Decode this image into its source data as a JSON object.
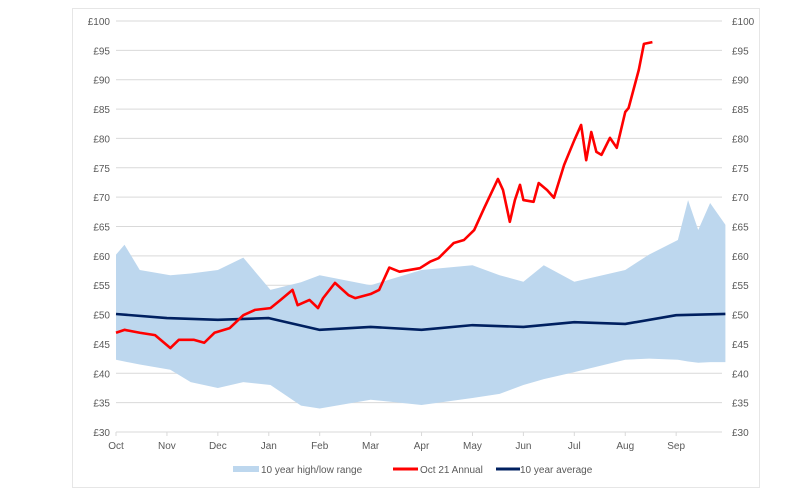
{
  "chart_data": {
    "type": "line",
    "title": "",
    "xlabel": "",
    "ylabel": "",
    "ylim": [
      30,
      100
    ],
    "y_ticks": [
      "£30",
      "£35",
      "£40",
      "£45",
      "£50",
      "£55",
      "£60",
      "£65",
      "£70",
      "£75",
      "£80",
      "£85",
      "£90",
      "£95",
      "£100"
    ],
    "y_tick_values": [
      30,
      35,
      40,
      45,
      50,
      55,
      60,
      65,
      70,
      75,
      80,
      85,
      90,
      95,
      100
    ],
    "x_ticks": [
      "Oct",
      "Nov",
      "Dec",
      "Jan",
      "Feb",
      "Mar",
      "Apr",
      "May",
      "Jun",
      "Jul",
      "Aug",
      "Sep"
    ],
    "grid": "horizontal",
    "secondary_y_axis": true,
    "legend_position": "bottom",
    "colors": {
      "range": "#bdd7ee",
      "annual": "#ff0000",
      "average": "#002060",
      "grid": "#d9d9d9"
    },
    "series": [
      {
        "name": "10 year high/low range",
        "kind": "area-band",
        "x": [
          "Oct 1",
          "Oct 6",
          "Oct 15",
          "Nov 3",
          "Nov 15",
          "Dec 1",
          "Dec 16",
          "Jan 2",
          "Jan 20",
          "Feb 1",
          "Mar 1",
          "Apr 1",
          "May 1",
          "May 17",
          "Jun 1",
          "Jun 13",
          "Jul 1",
          "Aug 1",
          "Aug 15",
          "Sep 2",
          "Sep 8",
          "Sep 14",
          "Sep 21",
          "Sep 30"
        ],
        "high": [
          60.2,
          61.9,
          57.6,
          56.7,
          57.0,
          57.6,
          59.7,
          54.2,
          55.5,
          56.7,
          55.0,
          57.6,
          58.4,
          56.7,
          55.6,
          58.4,
          55.6,
          57.6,
          60.2,
          62.7,
          69.5,
          64.4,
          69.0,
          65.3
        ],
        "low": [
          42.3,
          42.0,
          41.5,
          40.6,
          38.5,
          37.5,
          38.5,
          38.0,
          34.5,
          34.0,
          35.5,
          34.6,
          35.8,
          36.5,
          38.0,
          39.0,
          40.2,
          42.3,
          42.5,
          42.3,
          42.0,
          41.8,
          41.9,
          41.9
        ]
      },
      {
        "name": "Oct 21 Annual",
        "kind": "line",
        "x": [
          "Oct 1",
          "Oct 6",
          "Oct 15",
          "Oct 24",
          "Nov 3",
          "Nov 8",
          "Nov 17",
          "Nov 23",
          "Nov 29",
          "Dec 8",
          "Dec 16",
          "Dec 23",
          "Jan 2",
          "Jan 8",
          "Jan 15",
          "Jan 18",
          "Jan 25",
          "Jan 30",
          "Feb 3",
          "Feb 10",
          "Feb 18",
          "Feb 22",
          "Mar 1",
          "Mar 6",
          "Mar 12",
          "Mar 18",
          "Mar 24",
          "Mar 30",
          "Apr 6",
          "Apr 11",
          "Apr 20",
          "Apr 26",
          "May 2",
          "May 8",
          "May 16",
          "May 19",
          "May 23",
          "May 26",
          "May 29",
          "Jun 1",
          "Jun 7",
          "Jun 10",
          "Jun 15",
          "Jun 19",
          "Jun 25",
          "Jul 1",
          "Jul 5",
          "Jul 8",
          "Jul 11",
          "Jul 14",
          "Jul 17",
          "Jul 22",
          "Jul 26",
          "Jul 31",
          "Aug 3",
          "Aug 9",
          "Aug 12",
          "Aug 17"
        ],
        "values": [
          46.9,
          47.4,
          46.9,
          46.5,
          44.3,
          45.7,
          45.7,
          45.2,
          46.9,
          47.7,
          49.9,
          50.8,
          51.1,
          52.5,
          54.2,
          51.6,
          52.5,
          51.1,
          52.8,
          55.4,
          53.3,
          52.8,
          53.5,
          54.2,
          58.0,
          57.3,
          57.6,
          57.9,
          59.0,
          59.6,
          62.2,
          62.7,
          64.4,
          68.2,
          73.1,
          71.2,
          65.8,
          69.5,
          72.1,
          69.5,
          69.2,
          72.4,
          71.2,
          69.9,
          75.5,
          79.7,
          82.3,
          76.3,
          81.1,
          77.7,
          77.2,
          80.1,
          78.4,
          84.5,
          85.2,
          91.7,
          96.1,
          96.4
        ]
      },
      {
        "name": "10 year average",
        "kind": "line",
        "x": [
          "Oct 1",
          "Nov 1",
          "Dec 1",
          "Jan 1",
          "Feb 1",
          "Mar 1",
          "Apr 1",
          "May 1",
          "Jun 1",
          "Jul 1",
          "Aug 1",
          "Sep 1",
          "Sep 30"
        ],
        "values": [
          50.1,
          49.4,
          49.1,
          49.4,
          47.4,
          47.9,
          47.4,
          48.2,
          47.9,
          48.7,
          48.4,
          49.9,
          50.1
        ]
      }
    ]
  }
}
